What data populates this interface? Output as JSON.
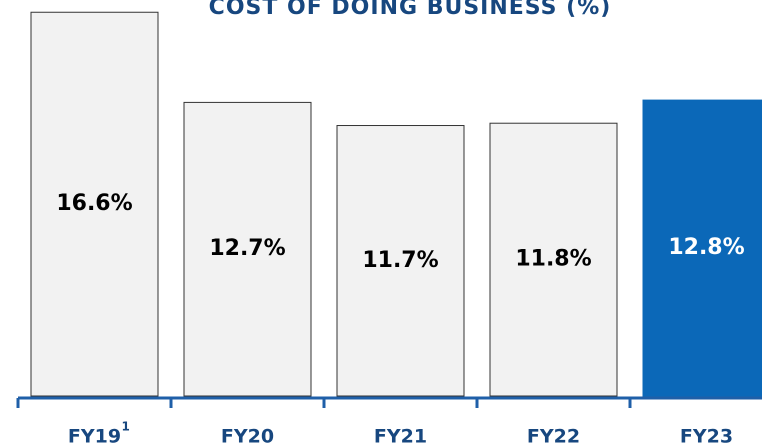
{
  "chart_data": {
    "type": "bar",
    "title": "COST OF DOING BUSINESS (%)",
    "categories": [
      "FY19",
      "FY20",
      "FY21",
      "FY22",
      "FY23"
    ],
    "category_notes": [
      "1",
      null,
      null,
      null,
      null
    ],
    "values": [
      16.6,
      12.7,
      11.7,
      11.8,
      12.8
    ],
    "value_labels": [
      "16.6%",
      "12.7%",
      "11.7%",
      "11.8%",
      "12.8%"
    ],
    "colors": [
      "#f2f2f2",
      "#f2f2f2",
      "#f2f2f2",
      "#f2f2f2",
      "#0b68b8"
    ],
    "ylim": [
      0,
      17
    ]
  }
}
